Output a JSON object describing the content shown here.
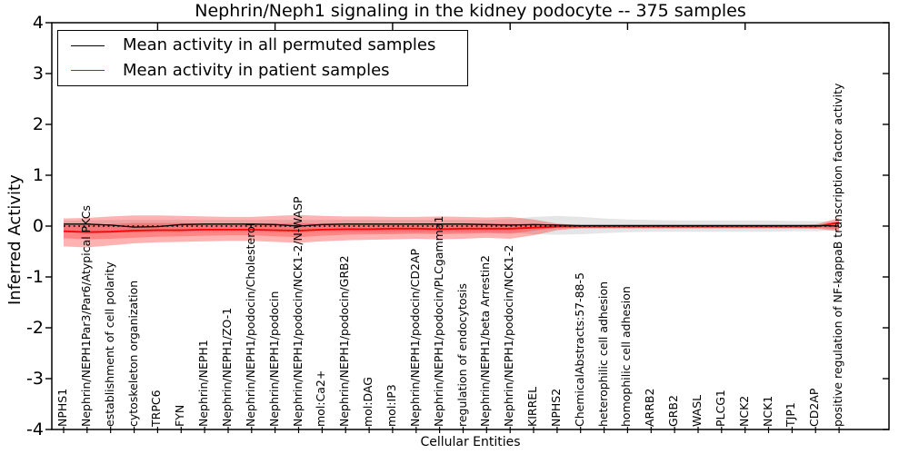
{
  "title": "Nephrin/Neph1 signaling in the kidney podocyte -- 375 samples",
  "axes": {
    "ylabel": "Inferred Activity",
    "xlabel": "Cellular Entities",
    "ytick_labels": [
      "4",
      "3",
      "2",
      "1",
      "0",
      "-1",
      "-2",
      "-3",
      "-4"
    ],
    "ylim": [
      -4,
      4
    ]
  },
  "legend": {
    "items": [
      {
        "label": "Mean activity in all permuted samples",
        "color": "#000000"
      },
      {
        "label": "Mean activity in patient samples",
        "color": "#ff0000"
      }
    ]
  },
  "chart_data": {
    "type": "line",
    "title": "Nephrin/Neph1 signaling in the kidney podocyte -- 375 samples",
    "xlabel": "Cellular Entities",
    "ylabel": "Inferred Activity",
    "ylim": [
      -4,
      4
    ],
    "grid": false,
    "legend_position": "upper left",
    "baseline": 0,
    "x_categories": [
      "NPHS1",
      "Nephrin/NEPH1Par3/Par6/Atypical PKCs",
      "establishment of cell polarity",
      "cytoskeleton organization",
      "TRPC6",
      "FYN",
      "Nephrin/NEPH1",
      "Nephrin/NEPH1/ZO-1",
      "Nephrin/NEPH1/podocin/Cholesterol",
      "Nephrin/NEPH1/podocin",
      "Nephrin/NEPH1/podocin/NCK1-2/N-WASP",
      "mol:Ca2+",
      "Nephrin/NEPH1/podocin/GRB2",
      "mol:DAG",
      "mol:IP3",
      "Nephrin/NEPH1/podocin/CD2AP",
      "Nephrin/NEPH1/podocin/PLCgamma1",
      "regulation of endocytosis",
      "Nephrin/NEPH1/beta Arrestin2",
      "Nephrin/NEPH1/podocin/NCK1-2",
      "KIRREL",
      "NPHS2",
      "ChemicalAbstracts:57-88-5",
      "heterophilic cell adhesion",
      "homophilic cell adhesion",
      "ARRB2",
      "GRB2",
      "WASL",
      "PLCG1",
      "NCK2",
      "NCK1",
      "TJP1",
      "CD2AP",
      "positive regulation of NF-kappaB transcription factor activity"
    ],
    "series": [
      {
        "name": "Mean activity in all permuted samples",
        "color": "#000000",
        "line_style": "solid",
        "values": [
          0.04,
          0.04,
          0.02,
          -0.02,
          -0.01,
          0.03,
          0.04,
          0.04,
          0.04,
          0.03,
          0.0,
          0.03,
          0.04,
          0.04,
          0.04,
          0.04,
          0.04,
          0.04,
          0.03,
          0.02,
          0.03,
          0.02,
          0.01,
          0.01,
          0.01,
          0.01,
          0.01,
          0.01,
          0.01,
          0.01,
          0.01,
          0.01,
          0.01,
          0.0
        ]
      },
      {
        "name": "Mean activity in patient samples",
        "color": "#ff0000",
        "line_style": "solid",
        "values": [
          -0.1,
          -0.12,
          -0.11,
          -0.09,
          -0.08,
          -0.08,
          -0.07,
          -0.07,
          -0.07,
          -0.08,
          -0.09,
          -0.07,
          -0.06,
          -0.06,
          -0.05,
          -0.05,
          -0.06,
          -0.05,
          -0.05,
          -0.05,
          -0.03,
          -0.01,
          -0.01,
          -0.01,
          -0.01,
          -0.01,
          -0.01,
          -0.01,
          -0.01,
          -0.01,
          -0.01,
          -0.01,
          -0.01,
          0.07
        ]
      },
      {
        "name": "zero baseline",
        "color": "#000000",
        "line_style": "dotted",
        "values_constant": 0
      }
    ],
    "bands": [
      {
        "name": "permuted-samples-spread",
        "color": "#000000",
        "opacity": 0.1,
        "upper": [
          0.1,
          0.11,
          0.12,
          0.12,
          0.12,
          0.12,
          0.12,
          0.12,
          0.12,
          0.12,
          0.12,
          0.12,
          0.12,
          0.12,
          0.12,
          0.12,
          0.12,
          0.12,
          0.12,
          0.14,
          0.18,
          0.2,
          0.18,
          0.15,
          0.13,
          0.12,
          0.11,
          0.11,
          0.11,
          0.11,
          0.11,
          0.1,
          0.1,
          0.08
        ],
        "lower": [
          -0.1,
          -0.11,
          -0.12,
          -0.12,
          -0.12,
          -0.12,
          -0.12,
          -0.12,
          -0.12,
          -0.12,
          -0.12,
          -0.12,
          -0.12,
          -0.12,
          -0.12,
          -0.12,
          -0.12,
          -0.12,
          -0.12,
          -0.13,
          -0.16,
          -0.17,
          -0.16,
          -0.14,
          -0.12,
          -0.11,
          -0.11,
          -0.11,
          -0.11,
          -0.11,
          -0.11,
          -0.1,
          -0.1,
          -0.08
        ]
      },
      {
        "name": "patient-samples-spread-outer",
        "color": "#ff0000",
        "opacity": 0.3,
        "upper": [
          0.15,
          0.16,
          0.19,
          0.21,
          0.21,
          0.2,
          0.19,
          0.18,
          0.18,
          0.2,
          0.22,
          0.2,
          0.19,
          0.19,
          0.18,
          0.18,
          0.19,
          0.18,
          0.17,
          0.18,
          0.13,
          0.05,
          0.02,
          0.02,
          0.02,
          0.02,
          0.02,
          0.02,
          0.02,
          0.02,
          0.02,
          0.02,
          0.03,
          0.16
        ],
        "lower": [
          -0.4,
          -0.42,
          -0.38,
          -0.34,
          -0.32,
          -0.31,
          -0.3,
          -0.29,
          -0.29,
          -0.31,
          -0.33,
          -0.3,
          -0.28,
          -0.27,
          -0.26,
          -0.25,
          -0.26,
          -0.25,
          -0.23,
          -0.25,
          -0.18,
          -0.08,
          -0.04,
          -0.04,
          -0.04,
          -0.04,
          -0.04,
          -0.04,
          -0.04,
          -0.04,
          -0.04,
          -0.04,
          -0.05,
          -0.1
        ]
      },
      {
        "name": "patient-samples-spread-inner",
        "color": "#ff0000",
        "opacity": 0.25,
        "upper": [
          0.02,
          0.02,
          0.04,
          0.06,
          0.06,
          0.06,
          0.05,
          0.05,
          0.05,
          0.05,
          0.06,
          0.05,
          0.05,
          0.05,
          0.05,
          0.05,
          0.05,
          0.05,
          0.05,
          0.05,
          0.03,
          0.01,
          0.0,
          0.0,
          0.0,
          0.0,
          0.0,
          0.0,
          0.0,
          0.0,
          0.0,
          0.0,
          0.01,
          0.1
        ],
        "lower": [
          -0.24,
          -0.26,
          -0.25,
          -0.23,
          -0.21,
          -0.2,
          -0.19,
          -0.18,
          -0.18,
          -0.2,
          -0.22,
          -0.19,
          -0.17,
          -0.16,
          -0.16,
          -0.15,
          -0.16,
          -0.15,
          -0.14,
          -0.15,
          -0.09,
          -0.03,
          -0.02,
          -0.02,
          -0.02,
          -0.02,
          -0.02,
          -0.02,
          -0.02,
          -0.02,
          -0.02,
          -0.02,
          -0.03,
          -0.06
        ]
      }
    ]
  }
}
